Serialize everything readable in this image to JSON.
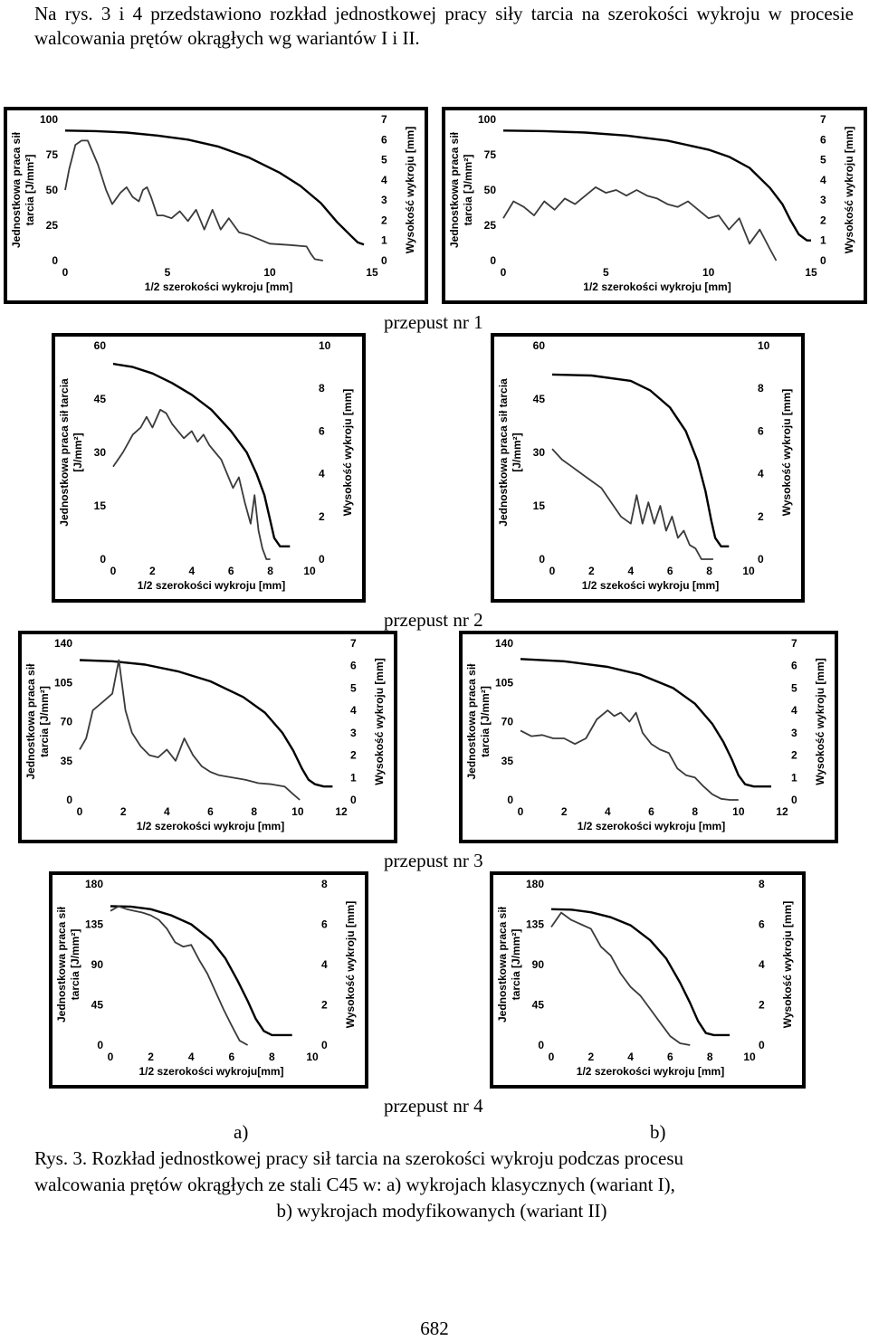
{
  "intro_text": "Na rys. 3 i 4 przedstawiono rozkład jednostkowej pracy siły tarcia na szerokości wykroju w procesie walcowania prętów okrągłych wg wariantów I i II.",
  "passes": [
    "przepust nr 1",
    "przepust nr 2",
    "przepust nr 3",
    "przepust nr 4"
  ],
  "sub_labels": {
    "a": "a)",
    "b": "b)"
  },
  "caption": {
    "line1": "Rys. 3. Rozkład jednostkowej pracy sił tarcia na szerokości wykroju podczas procesu",
    "line2": "walcowania prętów okrągłych ze stali C45 w: a) wykrojach klasycznych (wariant I),",
    "line3": "b) wykrojach modyfikowanych (wariant II)"
  },
  "page_number": "682",
  "chart_data": [
    {
      "id": "p1a",
      "type": "line",
      "xlabel": "1/2 szerokości wykroju [mm]",
      "ylabel_left": [
        "Jednostkowa praca sił",
        "tarcia [J/mm²]"
      ],
      "ylabel_right": "Wysokość wykroju [mm]",
      "xlim": [
        0,
        15
      ],
      "xticks": [
        "0",
        "5",
        "10",
        "15"
      ],
      "ylim_left": [
        0,
        100
      ],
      "yticks_left": [
        "0",
        "25",
        "50",
        "75",
        "100"
      ],
      "ylim_right": [
        0,
        7
      ],
      "yticks_right": [
        "0",
        "1",
        "2",
        "3",
        "4",
        "5",
        "6",
        "7"
      ],
      "series": [
        {
          "axis": "right",
          "x": [
            0.0,
            1.5,
            3,
            4.5,
            6,
            7.5,
            9,
            10.5,
            11.5,
            12.5,
            13.3,
            14,
            14.3,
            14.6
          ],
          "y": [
            6.45,
            6.42,
            6.35,
            6.2,
            6.0,
            5.65,
            5.1,
            4.35,
            3.7,
            2.85,
            1.9,
            1.2,
            0.9,
            0.8
          ]
        },
        {
          "axis": "left",
          "x": [
            0.0,
            0.2,
            0.5,
            0.8,
            1.1,
            1.6,
            2.0,
            2.3,
            2.7,
            3.0,
            3.3,
            3.6,
            3.8,
            4.0,
            4.2,
            4.5,
            4.8,
            5.2,
            5.6,
            6.0,
            6.4,
            6.8,
            7.2,
            7.6,
            8.0,
            8.5,
            9.0,
            10.0,
            11.0,
            11.8,
            12.0,
            12.2,
            12.6
          ],
          "y": [
            50,
            65,
            82,
            85,
            85,
            68,
            50,
            40,
            48,
            52,
            45,
            42,
            50,
            52,
            45,
            32,
            32,
            30,
            35,
            28,
            36,
            22,
            36,
            22,
            30,
            20,
            18,
            12,
            11,
            10,
            5,
            1,
            0
          ]
        }
      ]
    },
    {
      "id": "p1b",
      "type": "line",
      "xlabel": "1/2 szerokości wykroju [mm]",
      "ylabel_left": [
        "Jednostkowa praca sił",
        "tarcia [J/mm²]"
      ],
      "ylabel_right": "Wysokość wykroju [mm]",
      "xlim": [
        0,
        15
      ],
      "xticks": [
        "0",
        "5",
        "10",
        "15"
      ],
      "ylim_left": [
        0,
        100
      ],
      "yticks_left": [
        "0",
        "25",
        "50",
        "75",
        "100"
      ],
      "ylim_right": [
        0,
        7
      ],
      "yticks_right": [
        "0",
        "1",
        "2",
        "3",
        "4",
        "5",
        "6",
        "7"
      ],
      "series": [
        {
          "axis": "right",
          "x": [
            0.0,
            2,
            4,
            6,
            8,
            10,
            11,
            12,
            13,
            13.6,
            14,
            14.4,
            14.8,
            15
          ],
          "y": [
            6.45,
            6.42,
            6.35,
            6.2,
            5.95,
            5.5,
            5.15,
            4.6,
            3.6,
            2.8,
            2.0,
            1.3,
            1.0,
            1.0
          ]
        },
        {
          "axis": "left",
          "x": [
            0.0,
            0.5,
            1.0,
            1.5,
            2.0,
            2.5,
            3.0,
            3.5,
            4.0,
            4.5,
            5.0,
            5.5,
            6.0,
            6.5,
            7.0,
            7.5,
            8.0,
            8.5,
            9.0,
            9.5,
            10.0,
            10.5,
            11.0,
            11.5,
            12.0,
            12.5,
            13.0,
            13.3
          ],
          "y": [
            30,
            42,
            38,
            32,
            42,
            36,
            44,
            40,
            46,
            52,
            48,
            50,
            46,
            50,
            46,
            44,
            40,
            38,
            42,
            36,
            30,
            32,
            22,
            30,
            12,
            22,
            8,
            0
          ]
        }
      ]
    },
    {
      "id": "p2a",
      "type": "line",
      "xlabel": "1/2 szerokości wykroju [mm]",
      "ylabel_left": [
        "Jednostkowa praca sił tarcia",
        "[J/mm²]"
      ],
      "ylabel_right": "Wysokość wykroju [mm]",
      "xlim": [
        0,
        10
      ],
      "xticks": [
        "0",
        "2",
        "4",
        "6",
        "8",
        "10"
      ],
      "ylim_left": [
        0,
        60
      ],
      "yticks_left": [
        "0",
        "15",
        "30",
        "45",
        "60"
      ],
      "ylim_right": [
        0,
        10
      ],
      "yticks_right": [
        "0",
        "2",
        "4",
        "6",
        "8",
        "10"
      ],
      "series": [
        {
          "axis": "right",
          "x": [
            0.0,
            1,
            2,
            3,
            4,
            5,
            6,
            6.8,
            7.3,
            7.7,
            8.0,
            8.2,
            8.5,
            9.0
          ],
          "y": [
            9.15,
            9.0,
            8.7,
            8.25,
            7.7,
            7.0,
            6.0,
            5.0,
            4.0,
            3.0,
            1.8,
            1.0,
            0.6,
            0.6
          ]
        },
        {
          "axis": "left",
          "x": [
            0.0,
            0.5,
            1.0,
            1.4,
            1.7,
            2.0,
            2.4,
            2.7,
            3.0,
            3.3,
            3.6,
            4.0,
            4.3,
            4.6,
            4.9,
            5.2,
            5.5,
            5.8,
            6.1,
            6.4,
            6.7,
            7.0,
            7.2,
            7.4,
            7.6,
            7.8,
            8.0
          ],
          "y": [
            26,
            30,
            35,
            37,
            40,
            37,
            42,
            41,
            38,
            36,
            34,
            36,
            33,
            35,
            32,
            30,
            28,
            24,
            20,
            23,
            16,
            10,
            18,
            8,
            3,
            0,
            0
          ]
        }
      ]
    },
    {
      "id": "p2b",
      "type": "line",
      "xlabel": "1/2 szekości wykroju [mm]",
      "ylabel_left": [
        "Jednostkowa praca sił tarcia",
        "[J/mm²]"
      ],
      "ylabel_right": "Wysokość wykroju [mm]",
      "xlim": [
        0,
        10
      ],
      "xticks": [
        "0",
        "2",
        "4",
        "6",
        "8",
        "10"
      ],
      "ylim_left": [
        0,
        60
      ],
      "yticks_left": [
        "0",
        "15",
        "30",
        "45",
        "60"
      ],
      "ylim_right": [
        0,
        10
      ],
      "yticks_right": [
        "0",
        "2",
        "4",
        "6",
        "8",
        "10"
      ],
      "series": [
        {
          "axis": "right",
          "x": [
            0.0,
            2,
            4,
            5,
            6,
            6.8,
            7.4,
            7.8,
            8.1,
            8.3,
            8.6,
            9.0
          ],
          "y": [
            8.65,
            8.6,
            8.35,
            7.9,
            7.1,
            6.0,
            4.6,
            3.2,
            1.8,
            1.0,
            0.6,
            0.6
          ]
        },
        {
          "axis": "left",
          "x": [
            0.0,
            0.5,
            1.0,
            1.5,
            2.0,
            2.5,
            3.0,
            3.5,
            4.0,
            4.3,
            4.6,
            4.9,
            5.2,
            5.5,
            5.8,
            6.1,
            6.4,
            6.7,
            7.0,
            7.3,
            7.6,
            7.9,
            8.2
          ],
          "y": [
            31,
            28,
            26,
            24,
            22,
            20,
            16,
            12,
            10,
            18,
            10,
            16,
            10,
            15,
            8,
            12,
            6,
            8,
            4,
            3,
            0,
            0,
            0
          ]
        }
      ]
    },
    {
      "id": "p3a",
      "type": "line",
      "xlabel": "1/2 szerokości wykroju [mm]",
      "ylabel_left": [
        "Jednostkowa praca sił",
        "tarcia [J/mm²]"
      ],
      "ylabel_right": "Wysokość wykroju [mm]",
      "xlim": [
        0,
        12
      ],
      "xticks": [
        "0",
        "2",
        "4",
        "6",
        "8",
        "10",
        "12"
      ],
      "ylim_left": [
        0,
        140
      ],
      "yticks_left": [
        "0",
        "35",
        "70",
        "105",
        "140"
      ],
      "ylim_right": [
        0,
        7
      ],
      "yticks_right": [
        "0",
        "1",
        "2",
        "3",
        "4",
        "5",
        "6",
        "7"
      ],
      "series": [
        {
          "axis": "right",
          "x": [
            0.0,
            1.5,
            3,
            4.5,
            6,
            7.5,
            8.5,
            9.3,
            9.8,
            10.2,
            10.5,
            10.8,
            11.2,
            11.6
          ],
          "y": [
            6.25,
            6.2,
            6.05,
            5.75,
            5.3,
            4.6,
            3.9,
            3.0,
            2.2,
            1.4,
            0.9,
            0.7,
            0.6,
            0.6
          ]
        },
        {
          "axis": "left",
          "x": [
            0.0,
            0.3,
            0.6,
            0.9,
            1.2,
            1.5,
            1.8,
            2.1,
            2.4,
            2.8,
            3.2,
            3.6,
            4.0,
            4.4,
            4.8,
            5.2,
            5.6,
            6.0,
            6.4,
            7.0,
            7.6,
            8.2,
            8.8,
            9.4,
            9.8,
            10.1
          ],
          "y": [
            45,
            55,
            80,
            85,
            90,
            95,
            125,
            80,
            60,
            48,
            40,
            38,
            45,
            35,
            55,
            40,
            30,
            25,
            22,
            20,
            18,
            15,
            14,
            12,
            5,
            0
          ]
        }
      ]
    },
    {
      "id": "p3b",
      "type": "line",
      "xlabel": "1/2 szerokości wykroju [mm]",
      "ylabel_left": [
        "Jednostkowa praca sił",
        "tarcia [J/mm²]"
      ],
      "ylabel_right": "Wysokość wykroju [mm]",
      "xlim": [
        0,
        12
      ],
      "xticks": [
        "0",
        "2",
        "4",
        "6",
        "8",
        "10",
        "12"
      ],
      "ylim_left": [
        0,
        140
      ],
      "yticks_left": [
        "0",
        "35",
        "70",
        "105",
        "140"
      ],
      "ylim_right": [
        0,
        7
      ],
      "yticks_right": [
        "0",
        "1",
        "2",
        "3",
        "4",
        "5",
        "6",
        "7"
      ],
      "series": [
        {
          "axis": "right",
          "x": [
            0.0,
            2,
            4,
            5.5,
            7,
            8,
            8.8,
            9.3,
            9.7,
            10.0,
            10.3,
            10.7,
            11.5
          ],
          "y": [
            6.3,
            6.2,
            5.95,
            5.6,
            5.0,
            4.3,
            3.4,
            2.6,
            1.8,
            1.1,
            0.7,
            0.6,
            0.6
          ]
        },
        {
          "axis": "left",
          "x": [
            0.0,
            0.5,
            1.0,
            1.5,
            2.0,
            2.5,
            3.0,
            3.5,
            4.0,
            4.3,
            4.6,
            5.0,
            5.3,
            5.6,
            6.0,
            6.4,
            6.8,
            7.2,
            7.6,
            8.0,
            8.4,
            8.8,
            9.2,
            9.6,
            10.0
          ],
          "y": [
            62,
            57,
            58,
            55,
            55,
            50,
            55,
            72,
            80,
            75,
            78,
            70,
            78,
            60,
            50,
            45,
            42,
            28,
            22,
            20,
            12,
            5,
            1,
            0,
            0
          ]
        }
      ]
    },
    {
      "id": "p4a",
      "type": "line",
      "xlabel": "1/2 szerokości wykroju[mm]",
      "ylabel_left": [
        "Jednostkowa praca sił",
        "tarcia [J/mm²]"
      ],
      "ylabel_right": "Wysokość wykroju [mm]",
      "xlim": [
        0,
        10
      ],
      "xticks": [
        "0",
        "2",
        "4",
        "6",
        "8",
        "10"
      ],
      "ylim_left": [
        0,
        180
      ],
      "yticks_left": [
        "0",
        "45",
        "90",
        "135",
        "180"
      ],
      "ylim_right": [
        0,
        8
      ],
      "yticks_right": [
        "0",
        "2",
        "4",
        "6",
        "8"
      ],
      "series": [
        {
          "axis": "right",
          "x": [
            0.0,
            1,
            2,
            3,
            4,
            5,
            5.7,
            6.3,
            6.8,
            7.2,
            7.6,
            8.0,
            9.0
          ],
          "y": [
            6.9,
            6.88,
            6.75,
            6.45,
            6.0,
            5.2,
            4.3,
            3.2,
            2.2,
            1.3,
            0.7,
            0.5,
            0.5
          ]
        },
        {
          "axis": "left",
          "x": [
            0.0,
            0.4,
            0.8,
            1.2,
            1.6,
            2.0,
            2.4,
            2.8,
            3.2,
            3.6,
            4.0,
            4.4,
            4.8,
            5.2,
            5.6,
            6.0,
            6.4,
            6.8
          ],
          "y": [
            150,
            155,
            152,
            150,
            148,
            145,
            140,
            130,
            115,
            110,
            112,
            95,
            80,
            60,
            40,
            22,
            5,
            0
          ]
        }
      ]
    },
    {
      "id": "p4b",
      "type": "line",
      "xlabel": "1/2 szerokości wykroju [mm]",
      "ylabel_left": [
        "Jednostkowa praca sił",
        "tarcia [J/mm²]"
      ],
      "ylabel_right": "Wysokość wykroju [mm]",
      "xlim": [
        0,
        10
      ],
      "xticks": [
        "0",
        "2",
        "4",
        "6",
        "8",
        "10"
      ],
      "ylim_left": [
        0,
        180
      ],
      "yticks_left": [
        "0",
        "45",
        "90",
        "135",
        "180"
      ],
      "ylim_right": [
        0,
        8
      ],
      "yticks_right": [
        "0",
        "2",
        "4",
        "6",
        "8"
      ],
      "series": [
        {
          "axis": "right",
          "x": [
            0.0,
            1,
            2,
            3,
            4,
            5,
            5.8,
            6.5,
            7.0,
            7.4,
            7.8,
            8.2,
            9.0
          ],
          "y": [
            6.75,
            6.73,
            6.6,
            6.35,
            5.95,
            5.2,
            4.3,
            3.1,
            2.1,
            1.2,
            0.6,
            0.5,
            0.5
          ]
        },
        {
          "axis": "left",
          "x": [
            0.0,
            0.5,
            1.0,
            1.5,
            2.0,
            2.5,
            3.0,
            3.5,
            4.0,
            4.5,
            5.0,
            5.5,
            6.0,
            6.5,
            7.0
          ],
          "y": [
            132,
            148,
            140,
            135,
            130,
            110,
            100,
            80,
            65,
            55,
            40,
            25,
            10,
            2,
            0
          ]
        }
      ]
    }
  ]
}
